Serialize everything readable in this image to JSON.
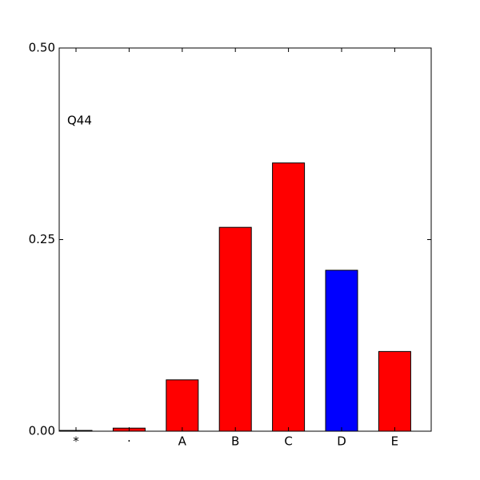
{
  "chart_data": {
    "type": "bar",
    "annotation": "Q44",
    "categories": [
      "*",
      "·",
      "A",
      "B",
      "C",
      "D",
      "E"
    ],
    "values": [
      0.001,
      0.004,
      0.067,
      0.266,
      0.35,
      0.21,
      0.104
    ],
    "colors": [
      "#ff0000",
      "#ff0000",
      "#ff0000",
      "#ff0000",
      "#ff0000",
      "#0000ff",
      "#ff0000"
    ],
    "ylim": [
      0,
      0.5
    ],
    "yticks": [
      {
        "value": 0,
        "label": "0.00"
      },
      0.25,
      {
        "value": 0.5,
        "label": "0.50"
      }
    ],
    "grid": false
  }
}
